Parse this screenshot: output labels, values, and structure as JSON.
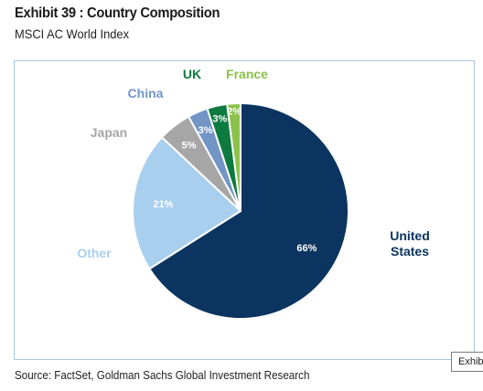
{
  "header": {
    "title": "Exhibit 39 : Country Composition",
    "subtitle": "MSCI AC World Index"
  },
  "footer": {
    "source": "Source: FactSet, Goldman Sachs Global Investment Research"
  },
  "tooltip": {
    "text": "Exhib"
  },
  "chart_data": {
    "type": "pie",
    "title": "Exhibit 39 : Country Composition",
    "subtitle": "MSCI AC World Index",
    "start_angle_deg": 0,
    "direction": "clockwise",
    "slices": [
      {
        "label": "United States",
        "value": 66,
        "value_label": "66%",
        "color": "#0b3560"
      },
      {
        "label": "Other",
        "value": 21,
        "value_label": "21%",
        "color": "#a9cfee"
      },
      {
        "label": "Japan",
        "value": 5,
        "value_label": "5%",
        "color": "#a6a6a6"
      },
      {
        "label": "China",
        "value": 3,
        "value_label": "3%",
        "color": "#7395c5"
      },
      {
        "label": "UK",
        "value": 3,
        "value_label": "3%",
        "color": "#0d7a3f"
      },
      {
        "label": "France",
        "value": 2,
        "value_label": "2%",
        "color": "#8cc24a"
      }
    ],
    "category_label_colors": {
      "United States": "#0b3560",
      "Other": "#a9cfee",
      "Japan": "#a6a6a6",
      "China": "#7395c5",
      "UK": "#0d7a3f",
      "France": "#8cc24a"
    }
  }
}
